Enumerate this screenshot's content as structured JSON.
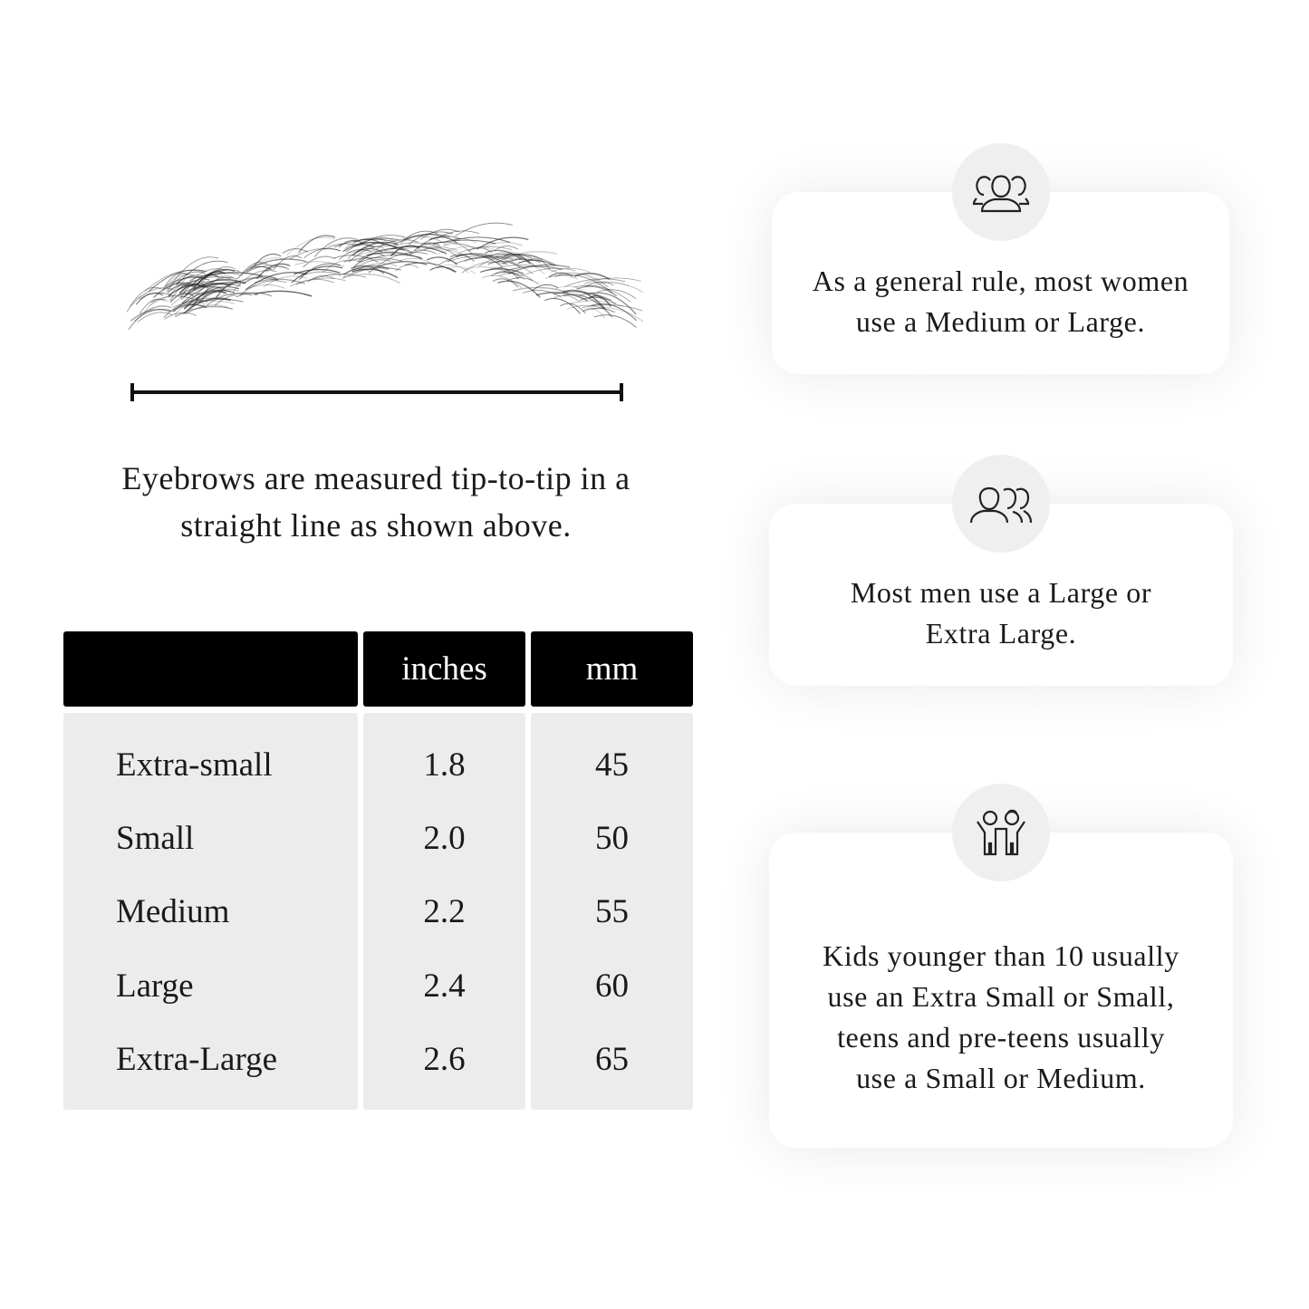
{
  "illustration": {
    "subject": "eyebrow",
    "caption": "Eyebrows are measured tip-to-tip in a straight line as shown above."
  },
  "table": {
    "headers": [
      "",
      "inches",
      "mm"
    ],
    "rows": [
      {
        "size": "Extra-small",
        "inches": "1.8",
        "mm": "45"
      },
      {
        "size": "Small",
        "inches": "2.0",
        "mm": "50"
      },
      {
        "size": "Medium",
        "inches": "2.2",
        "mm": "55"
      },
      {
        "size": "Large",
        "inches": "2.4",
        "mm": "60"
      },
      {
        "size": "Extra-Large",
        "inches": "2.6",
        "mm": "65"
      }
    ]
  },
  "cards": [
    {
      "icon": "women-group-icon",
      "text": "As a general rule, most women use a Medium or Large."
    },
    {
      "icon": "men-group-icon",
      "text": "Most men use a Large or Extra Large."
    },
    {
      "icon": "kids-icon",
      "text": "Kids younger than 10 usually use an Extra Small or Small, teens and pre-teens usually use a Small or Medium."
    }
  ]
}
